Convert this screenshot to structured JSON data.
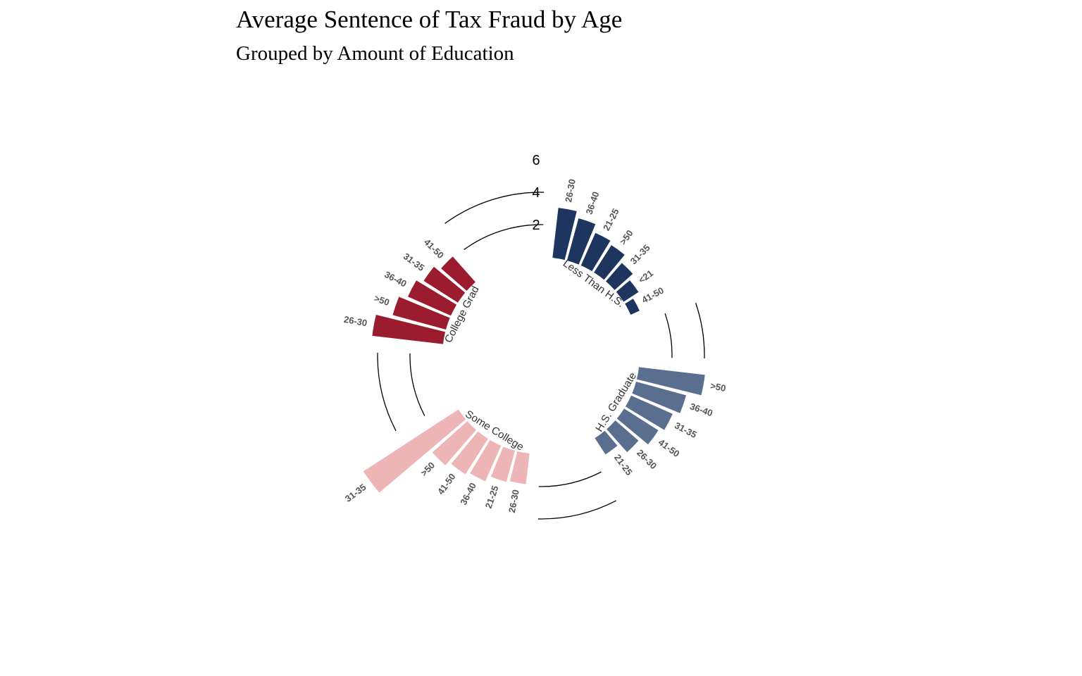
{
  "chart_data": {
    "type": "bar",
    "title": "Average Sentence of Tax Fraud by Age",
    "subtitle": "Grouped by Amount of Education",
    "layout": "circular",
    "radial_ticks": [
      2,
      4,
      6
    ],
    "groups": [
      {
        "name": "Less Than H.S.",
        "color": "#1e3560",
        "categories": [
          "26-30",
          "36-40",
          "21-25",
          ">50",
          "31-35",
          "<21",
          "41-50"
        ],
        "values": [
          3.1,
          2.7,
          2.2,
          2.0,
          1.5,
          1.1,
          0.6
        ]
      },
      {
        "name": "H.S. Graduate",
        "color": "#5a6f8f",
        "categories": [
          ">50",
          "36-40",
          "31-35",
          "41-50",
          "26-30",
          "21-25"
        ],
        "values": [
          4.1,
          3.2,
          2.8,
          2.5,
          1.9,
          1.2
        ]
      },
      {
        "name": "Some College",
        "color": "#edb5b6",
        "categories": [
          "26-30",
          "21-25",
          "36-40",
          "41-50",
          ">50",
          "31-35"
        ],
        "values": [
          1.9,
          2.0,
          2.4,
          2.6,
          2.9,
          7.0
        ]
      },
      {
        "name": "College Grad",
        "color": "#9b1c2e",
        "categories": [
          "26-30",
          ">50",
          "36-40",
          "31-35",
          "41-50"
        ],
        "values": [
          4.4,
          3.4,
          2.9,
          2.5,
          2.1
        ]
      }
    ]
  }
}
